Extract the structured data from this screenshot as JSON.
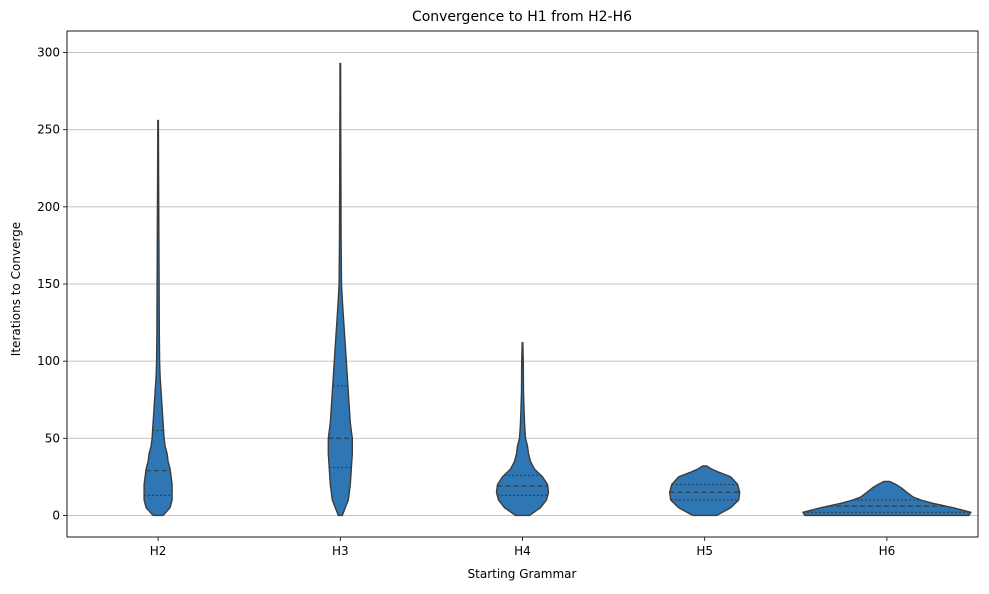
{
  "chart_data": {
    "type": "violin",
    "title": "Convergence to H1 from H2-H6",
    "xlabel": "Starting Grammar",
    "ylabel": "Iterations to Converge",
    "categories": [
      "H2",
      "H3",
      "H4",
      "H5",
      "H6"
    ],
    "ylim": [
      -14,
      314
    ],
    "yticks": [
      0,
      50,
      100,
      150,
      200,
      250,
      300
    ],
    "grid": "y",
    "inner": "quartile",
    "violin_color": "#2f77b4",
    "edge_color": "#3c3c3c",
    "grid_color": "#b0b0b0",
    "violins": [
      {
        "category": "H2",
        "min": 0,
        "max": 256,
        "quartiles": [
          13,
          29,
          55
        ],
        "profile": [
          [
            0,
            5
          ],
          [
            5,
            12
          ],
          [
            10,
            14
          ],
          [
            15,
            14
          ],
          [
            20,
            14
          ],
          [
            25,
            13
          ],
          [
            30,
            12
          ],
          [
            35,
            10
          ],
          [
            40,
            9
          ],
          [
            45,
            7
          ],
          [
            50,
            6
          ],
          [
            60,
            5
          ],
          [
            70,
            4
          ],
          [
            80,
            3
          ],
          [
            90,
            2
          ],
          [
            100,
            1.5
          ],
          [
            120,
            1.2
          ],
          [
            150,
            1
          ],
          [
            180,
            0.8
          ],
          [
            220,
            0.5
          ],
          [
            256,
            0.3
          ]
        ]
      },
      {
        "category": "H3",
        "min": 0,
        "max": 293,
        "quartiles": [
          31,
          50,
          84
        ],
        "profile": [
          [
            0,
            2
          ],
          [
            5,
            5
          ],
          [
            10,
            8
          ],
          [
            20,
            10
          ],
          [
            30,
            11
          ],
          [
            40,
            12
          ],
          [
            50,
            12
          ],
          [
            60,
            10
          ],
          [
            70,
            9
          ],
          [
            80,
            8
          ],
          [
            90,
            7
          ],
          [
            100,
            6
          ],
          [
            110,
            5
          ],
          [
            120,
            4
          ],
          [
            130,
            3
          ],
          [
            140,
            2
          ],
          [
            150,
            1.2
          ],
          [
            180,
            0.8
          ],
          [
            220,
            0.6
          ],
          [
            260,
            0.4
          ],
          [
            293,
            0.3
          ]
        ]
      },
      {
        "category": "H4",
        "min": 0,
        "max": 112,
        "quartiles": [
          13,
          19,
          26
        ],
        "profile": [
          [
            0,
            7
          ],
          [
            5,
            18
          ],
          [
            10,
            24
          ],
          [
            15,
            26
          ],
          [
            20,
            25
          ],
          [
            25,
            20
          ],
          [
            30,
            12
          ],
          [
            35,
            8
          ],
          [
            40,
            6
          ],
          [
            45,
            5
          ],
          [
            50,
            3
          ],
          [
            60,
            2
          ],
          [
            70,
            1.5
          ],
          [
            80,
            1
          ],
          [
            100,
            0.8
          ],
          [
            112,
            0.3
          ]
        ]
      },
      {
        "category": "H5",
        "min": 0,
        "max": 32,
        "quartiles": [
          10,
          15,
          20
        ],
        "profile": [
          [
            0,
            12
          ],
          [
            5,
            26
          ],
          [
            10,
            34
          ],
          [
            15,
            35
          ],
          [
            20,
            33
          ],
          [
            25,
            26
          ],
          [
            28,
            14
          ],
          [
            30,
            7
          ],
          [
            32,
            2
          ]
        ]
      },
      {
        "category": "H6",
        "min": 0,
        "max": 22,
        "quartiles": [
          2,
          6,
          10
        ],
        "profile": [
          [
            0,
            82
          ],
          [
            2,
            84
          ],
          [
            5,
            66
          ],
          [
            8,
            45
          ],
          [
            10,
            34
          ],
          [
            12,
            26
          ],
          [
            15,
            20
          ],
          [
            18,
            14
          ],
          [
            20,
            9
          ],
          [
            22,
            3
          ]
        ]
      }
    ]
  }
}
